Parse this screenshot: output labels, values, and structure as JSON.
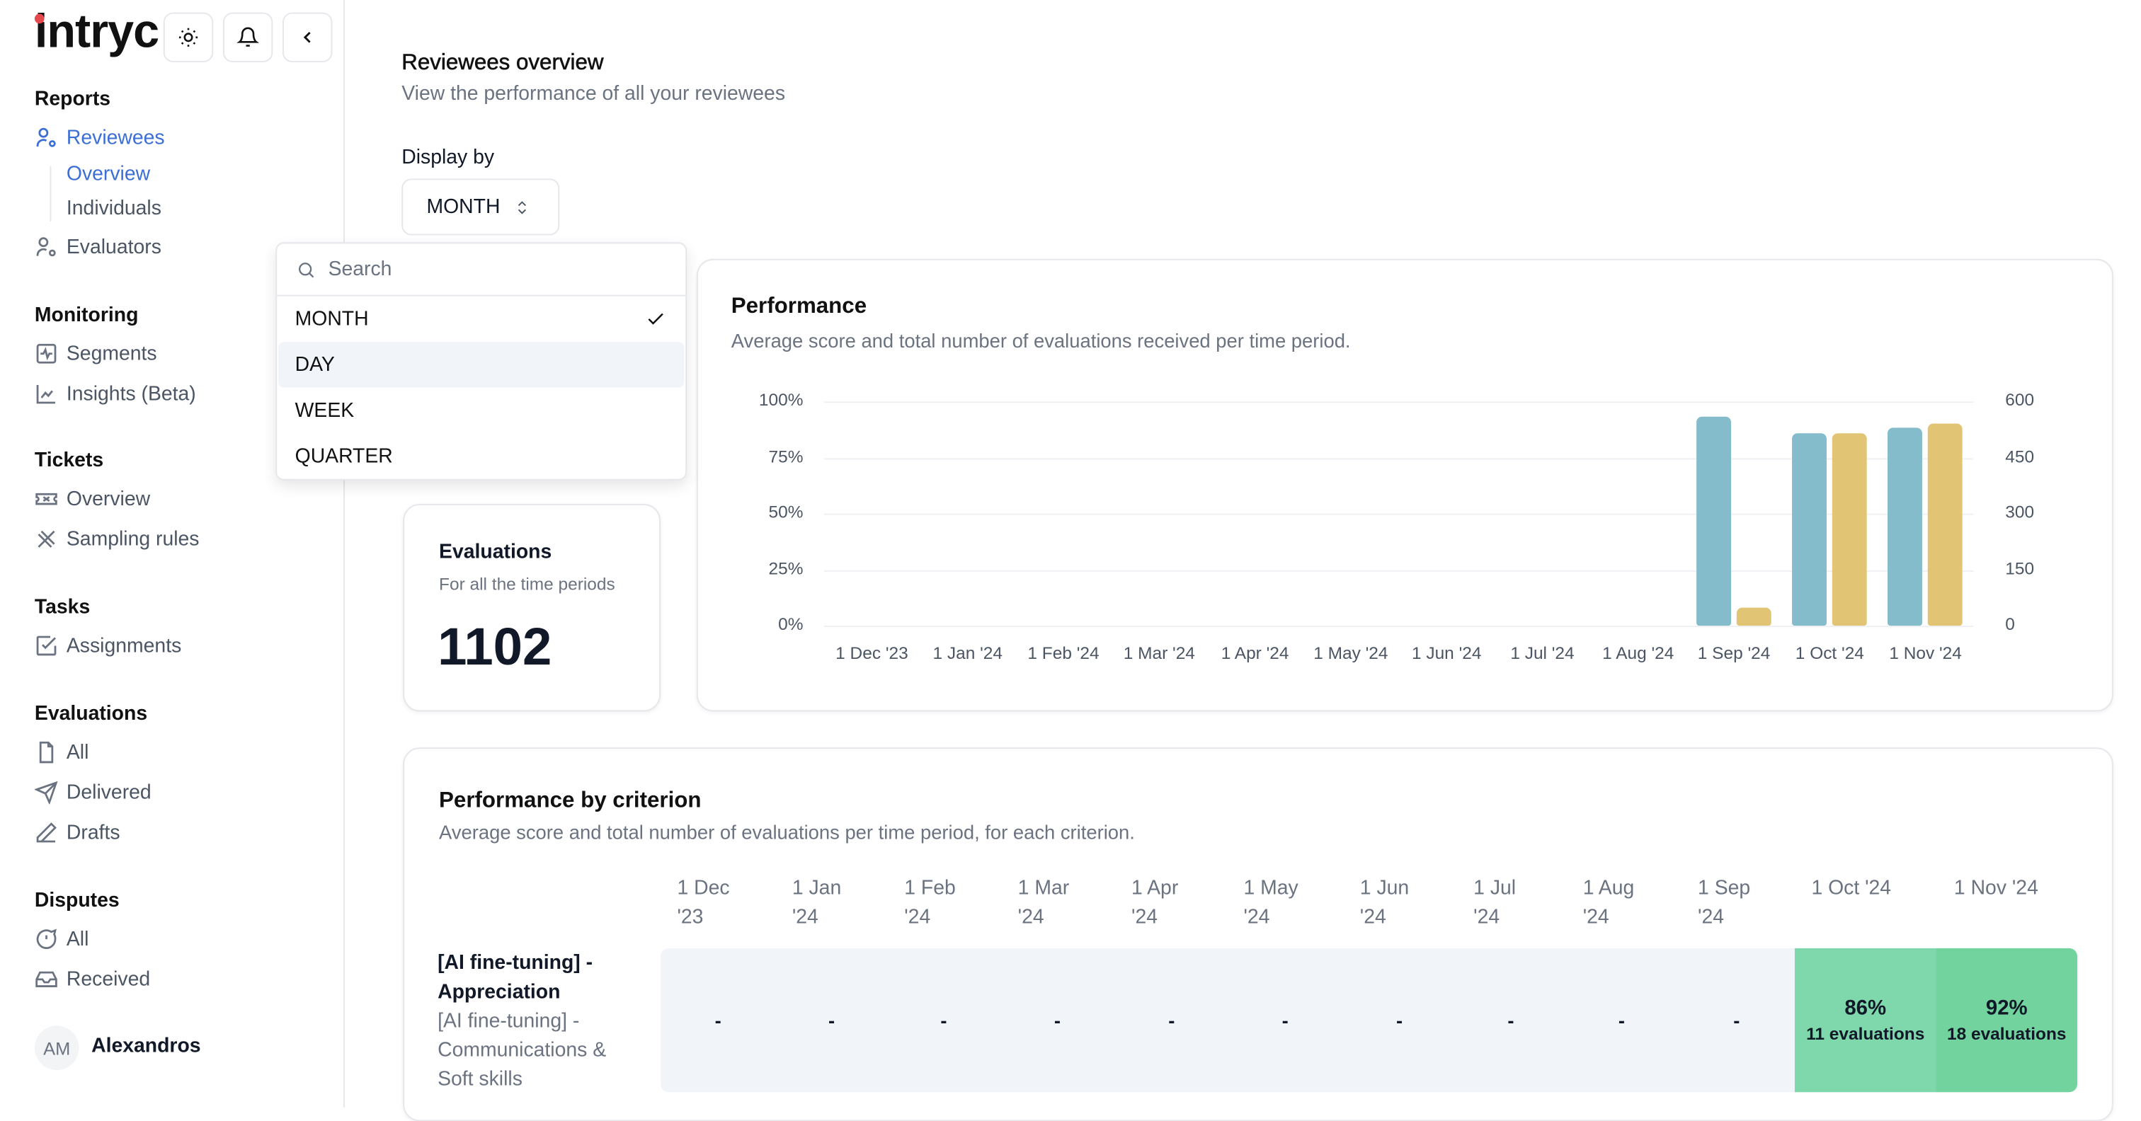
{
  "app": {
    "logo": "intryc",
    "buttons": {
      "theme": "sun-icon",
      "notifications": "bell-icon",
      "collapse": "chevron-left-icon"
    }
  },
  "sidebar": {
    "reports": {
      "heading": "Reports",
      "reviewees": "Reviewees",
      "overview": "Overview",
      "individuals": "Individuals",
      "evaluators": "Evaluators"
    },
    "monitoring": {
      "heading": "Monitoring",
      "segments": "Segments",
      "insights": "Insights (Beta)"
    },
    "tickets": {
      "heading": "Tickets",
      "overview": "Overview",
      "sampling": "Sampling rules"
    },
    "tasks": {
      "heading": "Tasks",
      "assignments": "Assignments"
    },
    "evaluations": {
      "heading": "Evaluations",
      "all": "All",
      "delivered": "Delivered",
      "drafts": "Drafts"
    },
    "disputes": {
      "heading": "Disputes",
      "all": "All",
      "received": "Received"
    },
    "user": {
      "initials": "AM",
      "name": "Alexandros"
    }
  },
  "page": {
    "title": "Reviewees overview",
    "subtitle": "View the performance of all your reviewees",
    "display_by_label": "Display by",
    "display_by_value": "MONTH"
  },
  "dropdown": {
    "search_placeholder": "Search",
    "options": [
      "MONTH",
      "DAY",
      "WEEK",
      "QUARTER"
    ],
    "selected": "MONTH",
    "highlighted": "DAY"
  },
  "evaluations_card": {
    "title": "Evaluations",
    "subtitle": "For all the time periods",
    "total": "1102"
  },
  "performance": {
    "title": "Performance",
    "subtitle": "Average score and total number of evaluations received per time period."
  },
  "chart_data": {
    "type": "bar",
    "categories": [
      "1 Dec '23",
      "1 Jan '24",
      "1 Feb '24",
      "1 Mar '24",
      "1 Apr '24",
      "1 May '24",
      "1 Jun '24",
      "1 Jul '24",
      "1 Aug '24",
      "1 Sep '24",
      "1 Oct '24",
      "1 Nov '24"
    ],
    "series": [
      {
        "axis": "left",
        "color": "#84bccb",
        "values": [
          null,
          null,
          null,
          null,
          null,
          null,
          null,
          null,
          null,
          93.5,
          86,
          88.5
        ]
      },
      {
        "axis": "right",
        "color": "#e2c574",
        "values": [
          null,
          null,
          null,
          null,
          null,
          null,
          null,
          null,
          null,
          49,
          513,
          540
        ]
      }
    ],
    "y_left": {
      "ticks": [
        "0%",
        "25%",
        "50%",
        "75%",
        "100%"
      ],
      "range": [
        0,
        100
      ]
    },
    "y_right": {
      "ticks": [
        "0",
        "150",
        "300",
        "450",
        "600"
      ],
      "range": [
        0,
        600
      ]
    },
    "grid": true
  },
  "criterion": {
    "title": "Performance by criterion",
    "subtitle": "Average score and total number of evaluations per time period, for each criterion.",
    "columns": [
      [
        "1 Dec",
        "'23"
      ],
      [
        "1 Jan",
        "'24"
      ],
      [
        "1 Feb",
        "'24"
      ],
      [
        "1 Mar",
        "'24"
      ],
      [
        "1 Apr",
        "'24"
      ],
      [
        "1 May",
        "'24"
      ],
      [
        "1 Jun",
        "'24"
      ],
      [
        "1 Jul",
        "'24"
      ],
      [
        "1 Aug",
        "'24"
      ],
      [
        "1 Sep",
        "'24"
      ],
      [
        "1 Oct '24",
        ""
      ],
      [
        "1 Nov '24",
        ""
      ]
    ],
    "rows": [
      {
        "name": "[AI fine-tuning] - Appreciation",
        "category": "[AI fine-tuning] - Communications & Soft skills",
        "cells": [
          {
            "v": "-"
          },
          {
            "v": "-"
          },
          {
            "v": "-"
          },
          {
            "v": "-"
          },
          {
            "v": "-"
          },
          {
            "v": "-"
          },
          {
            "v": "-"
          },
          {
            "v": "-"
          },
          {
            "v": "-"
          },
          {
            "v": "-"
          },
          {
            "v": "86%",
            "n": "11 evaluations",
            "color": "#7fd8ab"
          },
          {
            "v": "92%",
            "n": "18 evaluations",
            "color": "#72d39f"
          }
        ]
      }
    ]
  }
}
